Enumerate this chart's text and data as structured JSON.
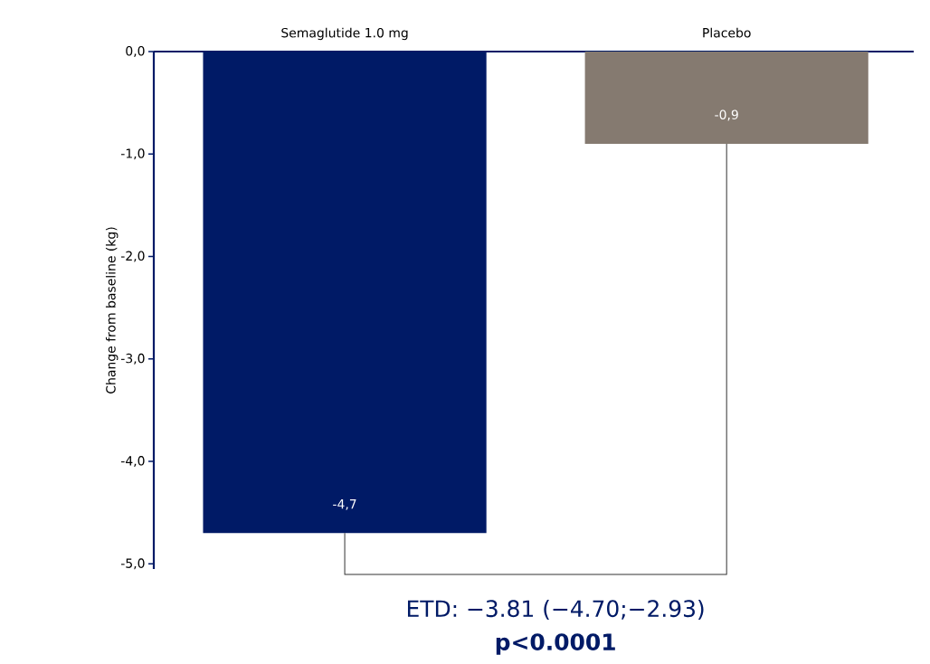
{
  "chart_data": {
    "type": "bar",
    "categories": [
      "Semaglutide 1.0 mg",
      "Placebo"
    ],
    "values": [
      -4.7,
      -0.9
    ],
    "colors": [
      "#001a66",
      "#857a70"
    ],
    "value_labels": [
      "-4,7",
      "-0,9"
    ],
    "ylabel": "Change from baseline (kg)",
    "ylim": [
      -5.05,
      0
    ],
    "yticks": [
      {
        "value": 0,
        "label": "0,0"
      },
      {
        "value": -1,
        "label": "-1,0"
      },
      {
        "value": -2,
        "label": "-2,0"
      },
      {
        "value": -3,
        "label": "-3,0"
      },
      {
        "value": -4,
        "label": "-4,0"
      },
      {
        "value": -5,
        "label": "-5,0"
      }
    ],
    "annotations": [
      "ETD: −3.81 (−4.70;−2.93)",
      "p<0.0001"
    ]
  }
}
